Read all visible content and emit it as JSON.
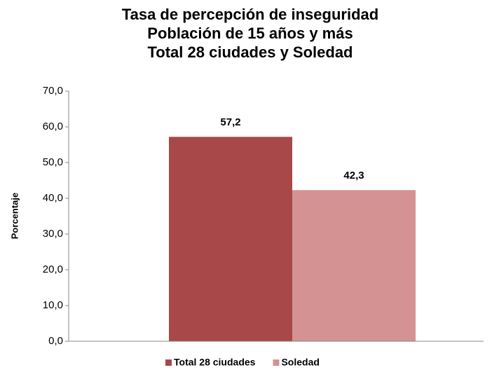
{
  "chart_data": {
    "type": "bar",
    "title": [
      "Tasa de percepción de inseguridad",
      "Población de 15 años y más",
      "Total 28 ciudades y Soledad"
    ],
    "y_label": "Porcentaje",
    "categories": [
      null
    ],
    "series": [
      {
        "name": "Total 28 ciudades",
        "color": "#a84848",
        "values": [
          57.2
        ],
        "value_labels": [
          "57,2"
        ]
      },
      {
        "name": "Soledad",
        "color": "#d49292",
        "values": [
          42.3
        ],
        "value_labels": [
          "42,3"
        ]
      }
    ],
    "ylim": [
      0,
      70
    ],
    "yticks": [
      {
        "value": 0,
        "label": "0,0"
      },
      {
        "value": 10,
        "label": "10,0"
      },
      {
        "value": 20,
        "label": "20,0"
      },
      {
        "value": 30,
        "label": "30,0"
      },
      {
        "value": 40,
        "label": "40,0"
      },
      {
        "value": 50,
        "label": "50,0"
      },
      {
        "value": 60,
        "label": "60,0"
      },
      {
        "value": 70,
        "label": "70,0"
      }
    ],
    "legend": "bottom"
  }
}
